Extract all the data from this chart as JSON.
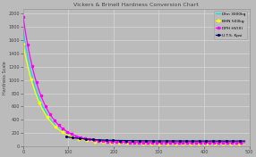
{
  "title": "Vickers & Brinell Hardness Conversion Chart",
  "ylabel": "Hardness Scale",
  "bg_color": "#bbbbbb",
  "plot_bg_color": "#bbbbbb",
  "grid_color": "#d8d8d8",
  "ylim": [
    0,
    2080
  ],
  "xlim": [
    0,
    500
  ],
  "yticks": [
    0,
    200,
    400,
    600,
    800,
    1000,
    1200,
    1400,
    1600,
    1800,
    2000
  ],
  "xtick_count": 6,
  "legend_labels": [
    "U.T.S. Kpsi",
    "DPH HV(X)",
    "BHN 500kg",
    "Dhn 3000kg"
  ],
  "legend_colors": [
    "#000066",
    "#ff00ff",
    "#ffff00",
    "#00e5e5"
  ],
  "hv_a": 1900,
  "hv_b": 55,
  "hv_c": 0.025,
  "dhn_a": 1700,
  "dhn_b": 50,
  "dhn_c": 0.026,
  "bhn_a": 1500,
  "bhn_b": 45,
  "bhn_c": 0.025,
  "uts_a": 360,
  "uts_b": 80,
  "uts_c": 0.018,
  "uts_x0": 95
}
